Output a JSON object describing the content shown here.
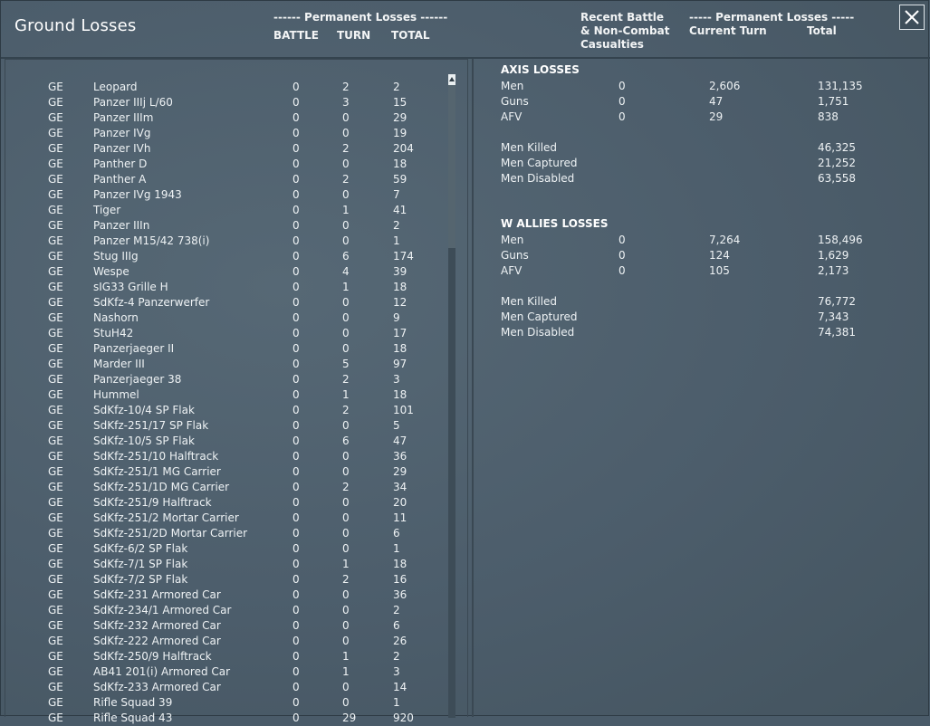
{
  "window": {
    "title": "Ground Losses",
    "close_icon": "close-icon"
  },
  "header": {
    "perm_losses_left": "------ Permanent Losses ------",
    "col_battle": "BATTLE",
    "col_turn": "TURN",
    "col_total": "TOTAL",
    "recent_line1": "Recent Battle",
    "recent_line2": "& Non-Combat",
    "recent_line3": "Casualties",
    "perm_losses_right": "----- Permanent Losses -----",
    "current_turn": "Current Turn",
    "total": "Total"
  },
  "units": [
    {
      "nation": "GE",
      "name": "Leopard",
      "battle": "0",
      "turn": "2",
      "total": "2"
    },
    {
      "nation": "GE",
      "name": "Panzer IIIj L/60",
      "battle": "0",
      "turn": "3",
      "total": "15"
    },
    {
      "nation": "GE",
      "name": "Panzer IIIm",
      "battle": "0",
      "turn": "0",
      "total": "29"
    },
    {
      "nation": "GE",
      "name": "Panzer IVg",
      "battle": "0",
      "turn": "0",
      "total": "19"
    },
    {
      "nation": "GE",
      "name": "Panzer IVh",
      "battle": "0",
      "turn": "2",
      "total": "204"
    },
    {
      "nation": "GE",
      "name": "Panther D",
      "battle": "0",
      "turn": "0",
      "total": "18"
    },
    {
      "nation": "GE",
      "name": "Panther A",
      "battle": "0",
      "turn": "2",
      "total": "59"
    },
    {
      "nation": "GE",
      "name": "Panzer IVg 1943",
      "battle": "0",
      "turn": "0",
      "total": "7"
    },
    {
      "nation": "GE",
      "name": "Tiger",
      "battle": "0",
      "turn": "1",
      "total": "41"
    },
    {
      "nation": "GE",
      "name": "Panzer IIIn",
      "battle": "0",
      "turn": "0",
      "total": "2"
    },
    {
      "nation": "GE",
      "name": "Panzer M15/42 738(i)",
      "battle": "0",
      "turn": "0",
      "total": "1"
    },
    {
      "nation": "GE",
      "name": "Stug IIIg",
      "battle": "0",
      "turn": "6",
      "total": "174"
    },
    {
      "nation": "GE",
      "name": "Wespe",
      "battle": "0",
      "turn": "4",
      "total": "39"
    },
    {
      "nation": "GE",
      "name": "sIG33 Grille H",
      "battle": "0",
      "turn": "1",
      "total": "18"
    },
    {
      "nation": "GE",
      "name": "SdKfz-4 Panzerwerfer",
      "battle": "0",
      "turn": "0",
      "total": "12"
    },
    {
      "nation": "GE",
      "name": "Nashorn",
      "battle": "0",
      "turn": "0",
      "total": "9"
    },
    {
      "nation": "GE",
      "name": "StuH42",
      "battle": "0",
      "turn": "0",
      "total": "17"
    },
    {
      "nation": "GE",
      "name": "Panzerjaeger II",
      "battle": "0",
      "turn": "0",
      "total": "18"
    },
    {
      "nation": "GE",
      "name": "Marder III",
      "battle": "0",
      "turn": "5",
      "total": "97"
    },
    {
      "nation": "GE",
      "name": "Panzerjaeger 38",
      "battle": "0",
      "turn": "2",
      "total": "3"
    },
    {
      "nation": "GE",
      "name": "Hummel",
      "battle": "0",
      "turn": "1",
      "total": "18"
    },
    {
      "nation": "GE",
      "name": "SdKfz-10/4 SP Flak",
      "battle": "0",
      "turn": "2",
      "total": "101"
    },
    {
      "nation": "GE",
      "name": "SdKfz-251/17 SP Flak",
      "battle": "0",
      "turn": "0",
      "total": "5"
    },
    {
      "nation": "GE",
      "name": "SdKfz-10/5 SP Flak",
      "battle": "0",
      "turn": "6",
      "total": "47"
    },
    {
      "nation": "GE",
      "name": "SdKfz-251/10 Halftrack",
      "battle": "0",
      "turn": "0",
      "total": "36"
    },
    {
      "nation": "GE",
      "name": "SdKfz-251/1 MG Carrier",
      "battle": "0",
      "turn": "0",
      "total": "29"
    },
    {
      "nation": "GE",
      "name": "SdKfz-251/1D MG Carrier",
      "battle": "0",
      "turn": "2",
      "total": "34"
    },
    {
      "nation": "GE",
      "name": "SdKfz-251/9 Halftrack",
      "battle": "0",
      "turn": "0",
      "total": "20"
    },
    {
      "nation": "GE",
      "name": "SdKfz-251/2 Mortar Carrier",
      "battle": "0",
      "turn": "0",
      "total": "11"
    },
    {
      "nation": "GE",
      "name": "SdKfz-251/2D Mortar Carrier",
      "battle": "0",
      "turn": "0",
      "total": "6"
    },
    {
      "nation": "GE",
      "name": "SdKfz-6/2 SP Flak",
      "battle": "0",
      "turn": "0",
      "total": "1"
    },
    {
      "nation": "GE",
      "name": "SdKfz-7/1 SP Flak",
      "battle": "0",
      "turn": "1",
      "total": "18"
    },
    {
      "nation": "GE",
      "name": "SdKfz-7/2 SP Flak",
      "battle": "0",
      "turn": "2",
      "total": "16"
    },
    {
      "nation": "GE",
      "name": "SdKfz-231 Armored Car",
      "battle": "0",
      "turn": "0",
      "total": "36"
    },
    {
      "nation": "GE",
      "name": "SdKfz-234/1 Armored Car",
      "battle": "0",
      "turn": "0",
      "total": "2"
    },
    {
      "nation": "GE",
      "name": "SdKfz-232 Armored Car",
      "battle": "0",
      "turn": "0",
      "total": "6"
    },
    {
      "nation": "GE",
      "name": "SdKfz-222 Armored Car",
      "battle": "0",
      "turn": "0",
      "total": "26"
    },
    {
      "nation": "GE",
      "name": "SdKfz-250/9 Halftrack",
      "battle": "0",
      "turn": "1",
      "total": "2"
    },
    {
      "nation": "GE",
      "name": "AB41 201(i) Armored Car",
      "battle": "0",
      "turn": "1",
      "total": "3"
    },
    {
      "nation": "GE",
      "name": "SdKfz-233 Armored Car",
      "battle": "0",
      "turn": "0",
      "total": "14"
    },
    {
      "nation": "GE",
      "name": "Rifle Squad 39",
      "battle": "0",
      "turn": "0",
      "total": "1"
    },
    {
      "nation": "GE",
      "name": "Rifle Squad 43",
      "battle": "0",
      "turn": "29",
      "total": "920"
    }
  ],
  "axis": {
    "title": "AXIS LOSSES",
    "rows": [
      {
        "label": "Men",
        "recent": "0",
        "current": "2,606",
        "total": "131,135"
      },
      {
        "label": "Guns",
        "recent": "0",
        "current": "47",
        "total": "1,751"
      },
      {
        "label": "AFV",
        "recent": "0",
        "current": "29",
        "total": "838"
      }
    ],
    "casualties": [
      {
        "label": "Men Killed",
        "total": "46,325"
      },
      {
        "label": "Men Captured",
        "total": "21,252"
      },
      {
        "label": "Men Disabled",
        "total": "63,558"
      }
    ]
  },
  "allies": {
    "title": "W ALLIES LOSSES",
    "rows": [
      {
        "label": "Men",
        "recent": "0",
        "current": "7,264",
        "total": "158,496"
      },
      {
        "label": "Guns",
        "recent": "0",
        "current": "124",
        "total": "1,629"
      },
      {
        "label": "AFV",
        "recent": "0",
        "current": "105",
        "total": "2,173"
      }
    ],
    "casualties": [
      {
        "label": "Men Killed",
        "total": "76,772"
      },
      {
        "label": "Men Captured",
        "total": "7,343"
      },
      {
        "label": "Men Disabled",
        "total": "74,381"
      }
    ]
  }
}
